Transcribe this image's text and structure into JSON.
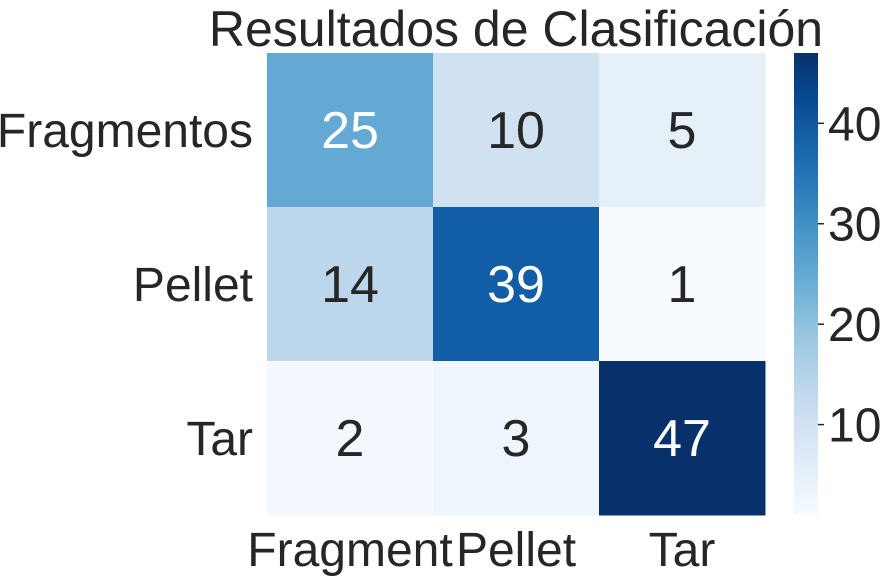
{
  "chart_data": {
    "type": "heatmap",
    "title": "Resultados de Clasificación",
    "xlabel": "",
    "ylabel": "",
    "x_categories": [
      "Fragment",
      "Pellet",
      "Tar"
    ],
    "y_categories": [
      "Fragmentos",
      "Pellet",
      "Tar"
    ],
    "values": [
      [
        25,
        10,
        5
      ],
      [
        14,
        39,
        1
      ],
      [
        2,
        3,
        47
      ]
    ],
    "colorbar": {
      "min": 1,
      "max": 47,
      "ticks": [
        10,
        20,
        30,
        40
      ]
    },
    "colormap": "Blues",
    "grid": false,
    "legend": "colorbar-right"
  }
}
